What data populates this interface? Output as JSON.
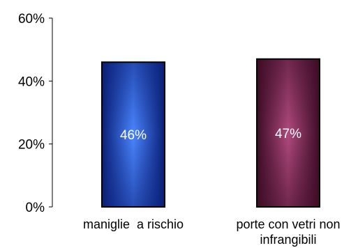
{
  "chart_data": {
    "type": "bar",
    "title": "",
    "xlabel": "",
    "ylabel": "",
    "categories": [
      [
        "maniglie  a rischio"
      ],
      [
        "porte con vetri non",
        "infrangibili"
      ]
    ],
    "values": [
      0.46,
      0.47
    ],
    "data_labels": [
      "46%",
      "47%"
    ],
    "ylim": [
      0,
      0.6
    ],
    "yticks": [
      {
        "value": 0,
        "label": "0%"
      },
      {
        "value": 0.2,
        "label": "20%"
      },
      {
        "value": 0.4,
        "label": "40%"
      },
      {
        "value": 0.6,
        "label": "60%"
      }
    ],
    "grid": false,
    "legend": "none",
    "colors": {
      "bar_1_center": "#4a86ff",
      "bar_1_edge": "#0a1f78",
      "bar_2_center": "#b04a7e",
      "bar_2_edge": "#3d0c26",
      "bar_border": "#000000",
      "axis": "#000000"
    }
  }
}
